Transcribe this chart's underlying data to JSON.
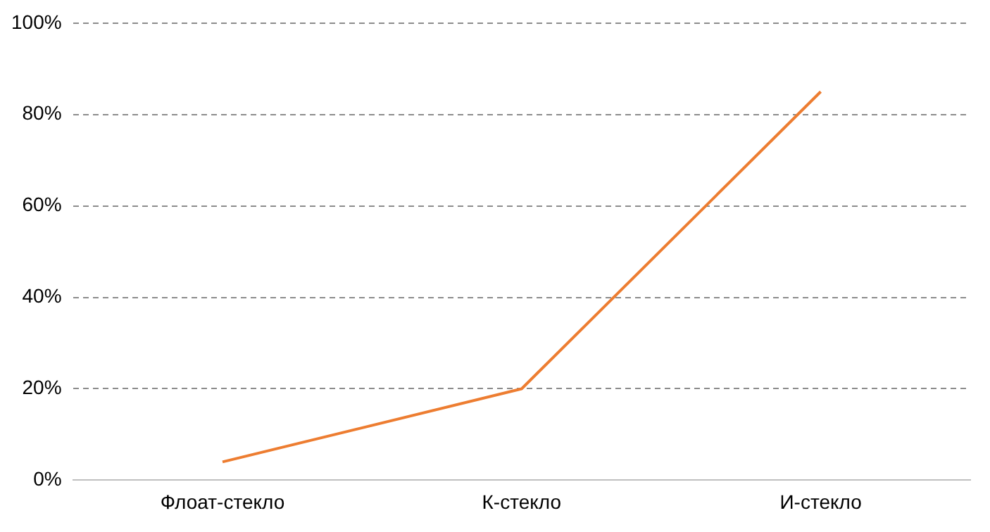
{
  "chart_data": {
    "type": "line",
    "categories": [
      "Флоат-стекло",
      "К-стекло",
      "И-стекло"
    ],
    "series": [
      {
        "color": "#ed7d31",
        "values": [
          4,
          20,
          85
        ]
      }
    ],
    "ylim": [
      0,
      100
    ],
    "yticks": [
      {
        "value": 0,
        "label": "0%"
      },
      {
        "value": 20,
        "label": "20%"
      },
      {
        "value": 40,
        "label": "40%"
      },
      {
        "value": 60,
        "label": "60%"
      },
      {
        "value": 80,
        "label": "80%"
      },
      {
        "value": 100,
        "label": "100%"
      }
    ],
    "grid": "y",
    "legend": false,
    "marker": "none",
    "line_style": "solid"
  }
}
